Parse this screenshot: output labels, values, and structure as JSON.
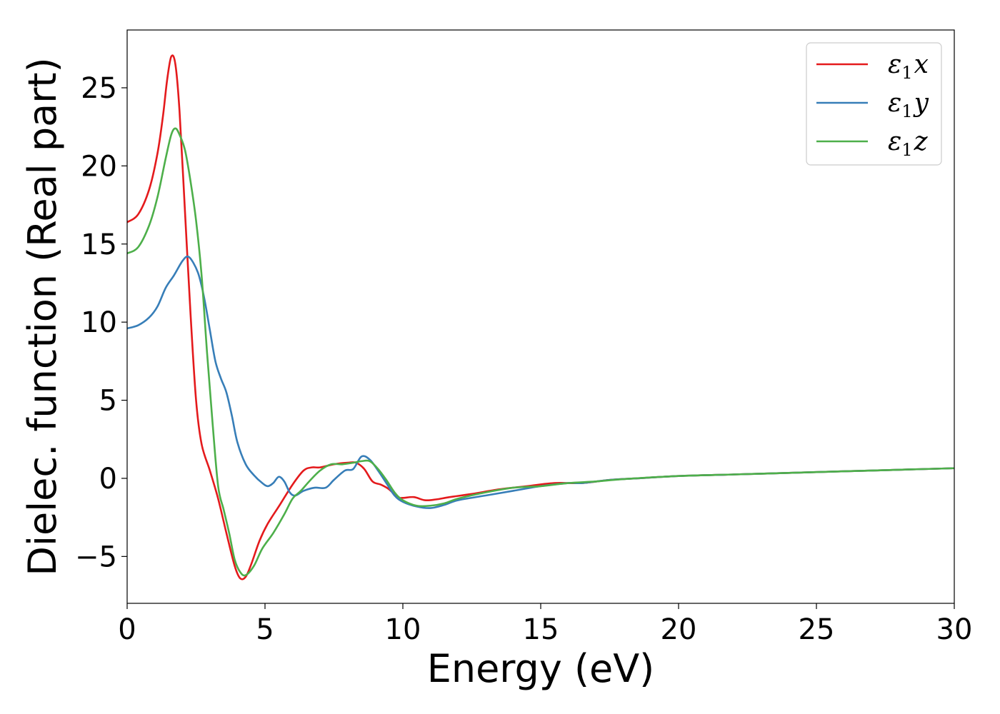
{
  "chart_data": {
    "type": "line",
    "xlabel": "Energy (eV)",
    "ylabel": "Dielec. function (Real part)",
    "xlim": [
      0,
      30
    ],
    "ylim": [
      -8,
      28.7
    ],
    "xticks": [
      0,
      5,
      10,
      15,
      20,
      25,
      30
    ],
    "xtick_labels": [
      "0",
      "5",
      "10",
      "15",
      "20",
      "25",
      "30"
    ],
    "yticks": [
      -5,
      0,
      5,
      10,
      15,
      20,
      25
    ],
    "ytick_labels": [
      "−5",
      "0",
      "5",
      "10",
      "15",
      "20",
      "25"
    ],
    "grid": false,
    "legend_position": "top-right",
    "series": [
      {
        "name": "ε₁x",
        "legend": {
          "base": "ε",
          "sub": "1",
          "var": "x"
        },
        "color": "#e41a1c",
        "x": [
          0,
          0.4,
          0.8,
          1.1,
          1.3,
          1.45,
          1.6,
          1.75,
          1.9,
          2.1,
          2.3,
          2.5,
          2.7,
          3.0,
          3.3,
          3.6,
          3.9,
          4.1,
          4.3,
          4.5,
          4.8,
          5.1,
          5.5,
          6.0,
          6.4,
          6.7,
          7.0,
          7.5,
          8.0,
          8.3,
          8.6,
          8.9,
          9.2,
          9.5,
          9.8,
          10.0,
          10.4,
          10.8,
          11.2,
          11.7,
          12.5,
          13.5,
          14.5,
          15.5,
          16.5,
          17.5,
          18.5,
          20,
          22,
          24,
          26,
          28,
          30
        ],
        "y": [
          16.4,
          16.9,
          18.5,
          20.8,
          23.2,
          25.5,
          27.0,
          26.5,
          23.5,
          17.0,
          10.5,
          5.0,
          2.2,
          0.5,
          -1.3,
          -3.5,
          -5.6,
          -6.4,
          -6.3,
          -5.5,
          -4.0,
          -2.9,
          -1.8,
          -0.4,
          0.5,
          0.7,
          0.7,
          0.9,
          1.0,
          1.0,
          0.6,
          -0.2,
          -0.4,
          -0.7,
          -1.2,
          -1.25,
          -1.2,
          -1.4,
          -1.35,
          -1.2,
          -1.0,
          -0.7,
          -0.5,
          -0.3,
          -0.3,
          -0.1,
          0.0,
          0.15,
          0.25,
          0.35,
          0.45,
          0.55,
          0.65
        ]
      },
      {
        "name": "ε₁y",
        "legend": {
          "base": "ε",
          "sub": "1",
          "var": "y"
        },
        "color": "#377eb8",
        "x": [
          0,
          0.4,
          0.8,
          1.1,
          1.4,
          1.7,
          2.0,
          2.2,
          2.4,
          2.6,
          2.8,
          3.0,
          3.2,
          3.4,
          3.6,
          3.8,
          4.0,
          4.3,
          4.6,
          4.9,
          5.1,
          5.3,
          5.5,
          5.7,
          5.9,
          6.1,
          6.4,
          6.8,
          7.2,
          7.5,
          7.9,
          8.2,
          8.5,
          8.8,
          9.1,
          9.4,
          9.7,
          10.0,
          10.5,
          11.0,
          11.5,
          12.0,
          13.0,
          14.0,
          15.0,
          16.0,
          16.5,
          17.5,
          18.5,
          20,
          22,
          24,
          26,
          28,
          30
        ],
        "y": [
          9.6,
          9.8,
          10.3,
          11.0,
          12.2,
          13.0,
          13.9,
          14.2,
          13.8,
          13.0,
          11.5,
          9.5,
          7.5,
          6.4,
          5.5,
          4.0,
          2.3,
          0.9,
          0.2,
          -0.3,
          -0.5,
          -0.3,
          0.1,
          -0.2,
          -0.9,
          -1.1,
          -0.8,
          -0.6,
          -0.6,
          -0.1,
          0.5,
          0.6,
          1.4,
          1.2,
          0.5,
          -0.3,
          -1.1,
          -1.5,
          -1.8,
          -1.9,
          -1.7,
          -1.4,
          -1.1,
          -0.8,
          -0.5,
          -0.3,
          -0.3,
          -0.1,
          0.0,
          0.15,
          0.25,
          0.35,
          0.45,
          0.55,
          0.65
        ]
      },
      {
        "name": "ε₁z",
        "legend": {
          "base": "ε",
          "sub": "1",
          "var": "z"
        },
        "color": "#4daf4a",
        "x": [
          0,
          0.4,
          0.8,
          1.1,
          1.4,
          1.6,
          1.75,
          1.9,
          2.1,
          2.3,
          2.5,
          2.7,
          2.9,
          3.1,
          3.3,
          3.5,
          3.7,
          3.9,
          4.1,
          4.3,
          4.6,
          4.9,
          5.3,
          5.7,
          6.0,
          6.3,
          6.6,
          7.0,
          7.4,
          7.8,
          8.2,
          8.5,
          8.8,
          9.1,
          9.4,
          9.7,
          10.0,
          10.5,
          11.0,
          11.5,
          12.0,
          13.0,
          14.0,
          15.0,
          16.0,
          17.0,
          18.0,
          20,
          22,
          24,
          26,
          28,
          30
        ],
        "y": [
          14.4,
          14.8,
          16.2,
          18.0,
          20.5,
          22.0,
          22.4,
          22.0,
          21.0,
          19.0,
          16.5,
          13.0,
          8.0,
          3.5,
          -0.5,
          -2.0,
          -3.5,
          -5.2,
          -6.0,
          -6.2,
          -5.6,
          -4.5,
          -3.5,
          -2.3,
          -1.3,
          -0.8,
          -0.2,
          0.5,
          0.9,
          0.9,
          1.0,
          1.1,
          1.1,
          0.6,
          -0.1,
          -0.9,
          -1.4,
          -1.75,
          -1.75,
          -1.6,
          -1.3,
          -0.9,
          -0.6,
          -0.5,
          -0.3,
          -0.2,
          -0.05,
          0.15,
          0.25,
          0.35,
          0.45,
          0.55,
          0.65
        ]
      }
    ]
  }
}
